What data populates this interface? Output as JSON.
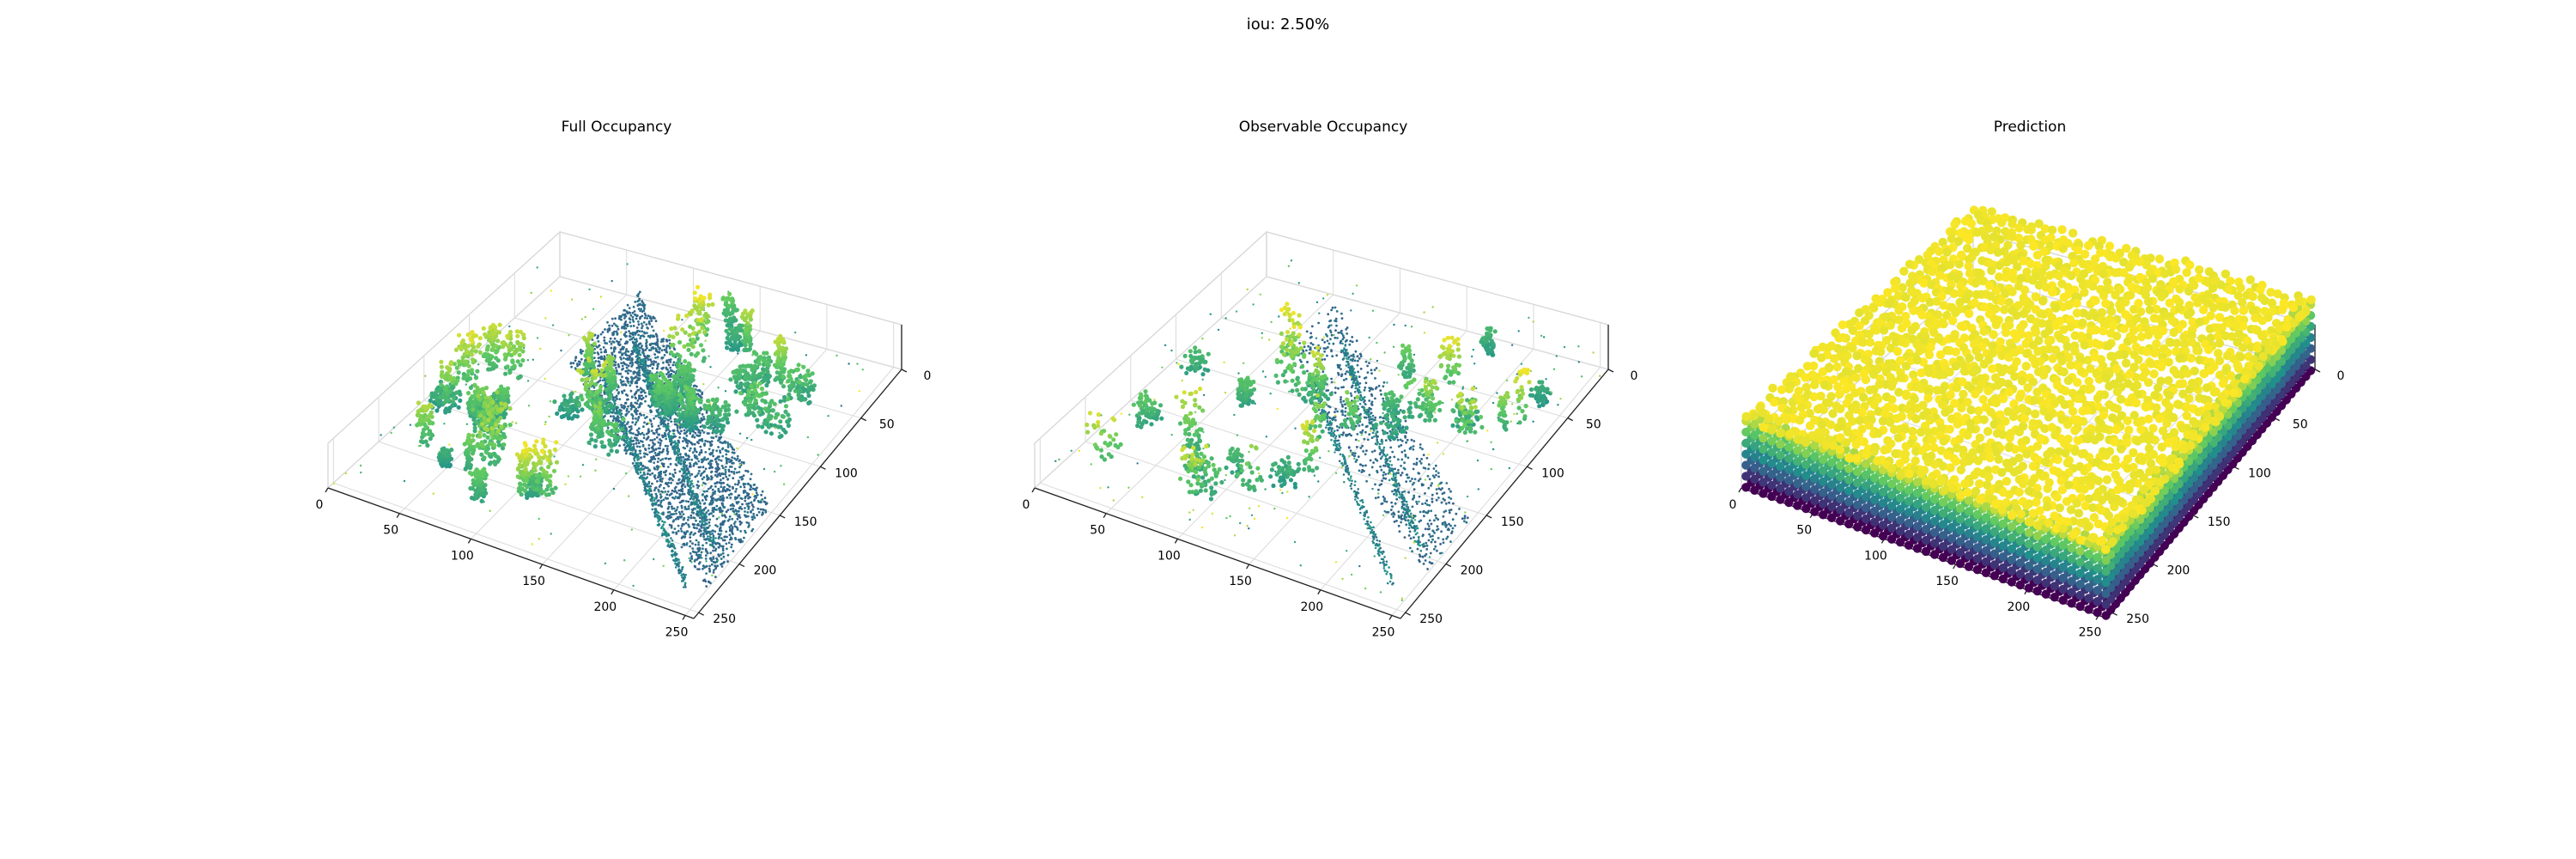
{
  "figure": {
    "suptitle": "iou: 2.50%"
  },
  "chart_data": [
    {
      "type": "scatter",
      "title": "Full Occupancy",
      "projection": "3d",
      "xlim": [
        0,
        256
      ],
      "ylim": [
        0,
        256
      ],
      "x_ticks": [
        "0",
        "50",
        "100",
        "150",
        "200",
        "250"
      ],
      "y_ticks": [
        "0",
        "50",
        "100",
        "150",
        "200",
        "250"
      ],
      "colormap": [
        "#440154",
        "#3b528b",
        "#21918c",
        "#5ec962",
        "#fde725"
      ],
      "scene": "dense"
    },
    {
      "type": "scatter",
      "title": "Observable Occupancy",
      "projection": "3d",
      "xlim": [
        0,
        256
      ],
      "ylim": [
        0,
        256
      ],
      "x_ticks": [
        "0",
        "50",
        "100",
        "150",
        "200",
        "250"
      ],
      "y_ticks": [
        "0",
        "50",
        "100",
        "150",
        "200",
        "250"
      ],
      "colormap": [
        "#440154",
        "#3b528b",
        "#21918c",
        "#5ec962",
        "#fde725"
      ],
      "scene": "sparse"
    },
    {
      "type": "scatter",
      "title": "Prediction",
      "projection": "3d",
      "xlim": [
        0,
        256
      ],
      "ylim": [
        0,
        256
      ],
      "x_ticks": [
        "0",
        "50",
        "100",
        "150",
        "200",
        "250"
      ],
      "y_ticks": [
        "0",
        "50",
        "100",
        "150",
        "200",
        "250"
      ],
      "colormap": [
        "#440154",
        "#3b528b",
        "#21918c",
        "#5ec962",
        "#fde725"
      ],
      "scene": "filled"
    }
  ]
}
